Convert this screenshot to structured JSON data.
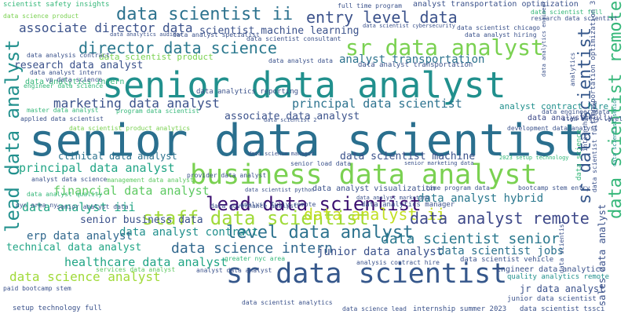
{
  "words": [
    {
      "text": "senior data scientist",
      "color": "#2a6f8e"
    },
    {
      "text": "senior data analyst",
      "color": "#21908d"
    },
    {
      "text": "sr data scientist",
      "color": "#35578b"
    },
    {
      "text": "business data analyst",
      "color": "#7ad151"
    },
    {
      "text": "sr data analyst",
      "color": "#7ad151"
    },
    {
      "text": "lead data scientist",
      "color": "#3b0f70"
    },
    {
      "text": "staff data scientist",
      "color": "#a0da39"
    },
    {
      "text": "level data analyst",
      "color": "#2c728e"
    },
    {
      "text": "data scientist ii",
      "color": "#2c728e"
    },
    {
      "text": "entry level data",
      "color": "#3b528b"
    },
    {
      "text": "director data science",
      "color": "#2a788e"
    },
    {
      "text": "lead data analyst",
      "color": "#21908d"
    },
    {
      "text": "data analyst ii",
      "color": "#c2df23"
    },
    {
      "text": "data analyst remote",
      "color": "#3e4989"
    },
    {
      "text": "data science intern",
      "color": "#31688e"
    },
    {
      "text": "data scientist senior",
      "color": "#2a788e"
    },
    {
      "text": "data scientist remote",
      "color": "#35b779"
    },
    {
      "text": "sr data scientist",
      "color": "#35578b"
    },
    {
      "text": "associate director data",
      "color": "#3b528b"
    },
    {
      "text": "marketing data analyst",
      "color": "#3b528b"
    },
    {
      "text": "principal data scientist",
      "color": "#2c728e"
    },
    {
      "text": "principal data analyst",
      "color": "#21a585"
    },
    {
      "text": "financial data analyst",
      "color": "#5ec962"
    },
    {
      "text": "data analyst iii",
      "color": "#21a585"
    },
    {
      "text": "data science analyst",
      "color": "#a0da39"
    },
    {
      "text": "healthcare data analyst",
      "color": "#21a585"
    },
    {
      "text": "junior data analyst",
      "color": "#3b528b"
    },
    {
      "text": "data analyst hybrid",
      "color": "#2a788e"
    },
    {
      "text": "data scientist jobs",
      "color": "#2c728e"
    },
    {
      "text": "data analyst contract",
      "color": "#21908d"
    },
    {
      "text": "data scientist machine",
      "color": "#3b528b"
    },
    {
      "text": "analyst transportation",
      "color": "#2c728e"
    },
    {
      "text": "scientist machine learning",
      "color": "#3b528b"
    },
    {
      "text": "associate data analyst",
      "color": "#3b528b"
    },
    {
      "text": "senior business data",
      "color": "#3b528b"
    },
    {
      "text": "erp data analyst",
      "color": "#31688e"
    },
    {
      "text": "technical data analyst",
      "color": "#21a585"
    },
    {
      "text": "research data analyst",
      "color": "#3b528b"
    },
    {
      "text": "data scientist product",
      "color": "#7ad151"
    },
    {
      "text": "sales data analyst",
      "color": "#3b528b"
    },
    {
      "text": "data analyst fully",
      "color": "#3e4989"
    },
    {
      "text": "analyst contract hire",
      "color": "#21908d"
    },
    {
      "text": "data analyst visualization",
      "color": "#3b528b"
    },
    {
      "text": "clinical data analyst",
      "color": "#2c728e"
    },
    {
      "text": "analyst transportation optimization",
      "color": "#3b528b"
    },
    {
      "text": "scientist safety insights",
      "color": "#35b779"
    },
    {
      "text": "data scientist cybersecurity",
      "color": "#3b528b"
    },
    {
      "text": "data scientist consultant",
      "color": "#3b528b"
    },
    {
      "text": "data analytics auditor",
      "color": "#3b528b"
    },
    {
      "text": "data analytics intern",
      "color": "#35b779"
    },
    {
      "text": "data analytics manager",
      "color": "#3b528b"
    },
    {
      "text": "data analytics reporting",
      "color": "#3b528b"
    },
    {
      "text": "data scientist python",
      "color": "#3b528b"
    },
    {
      "text": "data science manager",
      "color": "#3b528b"
    },
    {
      "text": "engineer data analytics",
      "color": "#3b528b"
    },
    {
      "text": "quality analytics remote",
      "color": "#21908d"
    },
    {
      "text": "jr data analyst",
      "color": "#3b528b"
    },
    {
      "text": "junior data scientist",
      "color": "#3b528b"
    },
    {
      "text": "data scientist vehicle",
      "color": "#3b528b"
    },
    {
      "text": "data scientist tssci",
      "color": "#3b528b"
    },
    {
      "text": "internship summer 2023",
      "color": "#3b528b"
    },
    {
      "text": "data science lead",
      "color": "#3b528b"
    },
    {
      "text": "data scientist analytics",
      "color": "#3b528b"
    },
    {
      "text": "setup technology full",
      "color": "#3b528b"
    },
    {
      "text": "paid bootcamp stem",
      "color": "#3b528b"
    },
    {
      "text": "services data analyst",
      "color": "#5ec962"
    },
    {
      "text": "nyc area ny",
      "color": "#3b528b"
    },
    {
      "text": "senior analyst data",
      "color": "#3b528b"
    },
    {
      "text": "data analyst quality",
      "color": "#35b779"
    },
    {
      "text": "analyst data science",
      "color": "#3b528b"
    },
    {
      "text": "applied data scientist",
      "color": "#3b528b"
    },
    {
      "text": "master data analyst",
      "color": "#35b779"
    },
    {
      "text": "vp data science",
      "color": "#3b528b"
    },
    {
      "text": "engineer data science",
      "color": "#35b779"
    },
    {
      "text": "data analysis contract",
      "color": "#3b528b"
    },
    {
      "text": "data analyst intern",
      "color": "#3b528b"
    },
    {
      "text": "data analyst data",
      "color": "#3b528b"
    },
    {
      "text": "data analyst hiring",
      "color": "#3b528b"
    },
    {
      "text": "data scientist chicago",
      "color": "#3b528b"
    },
    {
      "text": "data scientist full",
      "color": "#35b779"
    },
    {
      "text": "research data scientist",
      "color": "#3b528b"
    },
    {
      "text": "development data analyst",
      "color": "#3b528b"
    },
    {
      "text": "data engineer data",
      "color": "#3b528b"
    },
    {
      "text": "stem entry level",
      "color": "#3b528b"
    },
    {
      "text": "time program data",
      "color": "#3b528b"
    },
    {
      "text": "bootcamp stem entry",
      "color": "#3b528b"
    },
    {
      "text": "data analyst marketing",
      "color": "#3b528b"
    },
    {
      "text": "full time program",
      "color": "#3b528b"
    },
    {
      "text": "data science product",
      "color": "#7ad151"
    },
    {
      "text": "data scientist product analytics",
      "color": "#7ad151"
    },
    {
      "text": "data analyst transportation",
      "color": "#3b528b"
    },
    {
      "text": "data analyst specialist",
      "color": "#3b528b"
    },
    {
      "text": "data scientist 2",
      "color": "#3b528b"
    },
    {
      "text": "data governance analyst",
      "color": "#3b528b"
    },
    {
      "text": "analyst data analyst",
      "color": "#3b528b"
    },
    {
      "text": "analyst fully remote",
      "color": "#3b528b"
    },
    {
      "text": "analysis contract hire",
      "color": "#3b528b"
    },
    {
      "text": "2023 setup technology",
      "color": "#35b779"
    },
    {
      "text": "data scientist senior",
      "color": "#21908d"
    },
    {
      "text": "data scientist full time",
      "color": "#3b528b"
    },
    {
      "text": "transportation optimization 3",
      "color": "#3b528b"
    },
    {
      "text": "internship",
      "color": "#3b528b"
    },
    {
      "text": "data science",
      "color": "#35b779"
    },
    {
      "text": "analytics",
      "color": "#3b528b"
    },
    {
      "text": "data scientist",
      "color": "#3b528b"
    },
    {
      "text": "program data scientist",
      "color": "#35b779"
    },
    {
      "text": "provider data analyst",
      "color": "#3b528b"
    },
    {
      "text": "greater nyc area",
      "color": "#35b779"
    },
    {
      "text": "senior load data",
      "color": "#3b528b"
    },
    {
      "text": "senior marketing data",
      "color": "#3b528b"
    },
    {
      "text": "management data analyst",
      "color": "#5ec962"
    },
    {
      "text": "data analytics engineer",
      "color": "#3b528b"
    }
  ]
}
